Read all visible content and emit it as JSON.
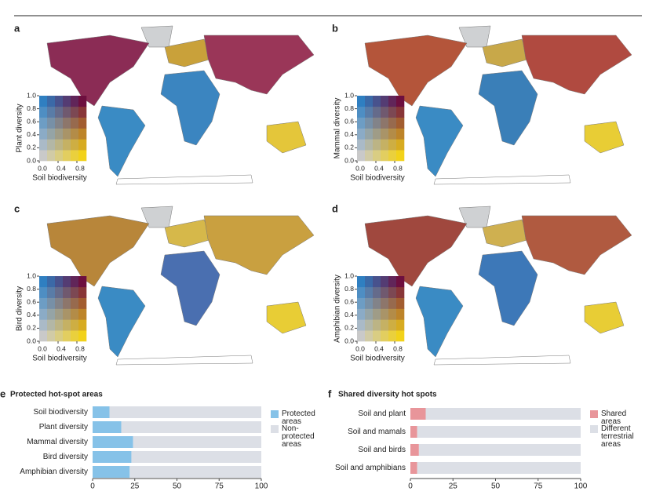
{
  "chart_data": [
    {
      "type": "bivariate-map",
      "label": "a",
      "ylabel": "Plant diversity",
      "xlabel": "Soil biodiversity",
      "xlim": [
        0,
        1
      ],
      "ylim": [
        0,
        1
      ],
      "xticks": [
        {
          "value": 0,
          "label": "0.0"
        },
        0.4,
        0.8
      ],
      "yticks": [
        {
          "value": 0,
          "label": "0.0"
        },
        0.2,
        0.4,
        0.6,
        0.8,
        {
          "value": 1,
          "label": "1.0"
        }
      ]
    },
    {
      "type": "bivariate-map",
      "label": "b",
      "ylabel": "Mammal diversity",
      "xlabel": "Soil biodiversity",
      "xlim": [
        0,
        1
      ],
      "ylim": [
        0,
        1
      ],
      "xticks": [
        {
          "value": 0,
          "label": "0.0"
        },
        0.4,
        0.8
      ],
      "yticks": [
        {
          "value": 0,
          "label": "0.0"
        },
        0.2,
        0.4,
        0.6,
        0.8,
        {
          "value": 1,
          "label": "1.0"
        }
      ]
    },
    {
      "type": "bivariate-map",
      "label": "c",
      "ylabel": "Bird diversity",
      "xlabel": "Soil biodiversity",
      "xlim": [
        0,
        1
      ],
      "ylim": [
        0,
        1
      ],
      "xticks": [
        {
          "value": 0,
          "label": "0.0"
        },
        0.4,
        0.8
      ],
      "yticks": [
        {
          "value": 0,
          "label": "0.0"
        },
        0.2,
        0.4,
        0.6,
        0.8,
        {
          "value": 1,
          "label": "1.0"
        }
      ]
    },
    {
      "type": "bivariate-map",
      "label": "d",
      "ylabel": "Amphibian diversity",
      "xlabel": "Soil biodiversity",
      "xlim": [
        0,
        1
      ],
      "ylim": [
        0,
        1
      ],
      "xticks": [
        {
          "value": 0,
          "label": "0.0"
        },
        0.4,
        0.8
      ],
      "yticks": [
        {
          "value": 0,
          "label": "0.0"
        },
        0.2,
        0.4,
        0.6,
        0.8,
        {
          "value": 1,
          "label": "1.0"
        }
      ]
    },
    {
      "type": "bar",
      "label": "e",
      "title": "Protected hot-spot areas",
      "stacked": true,
      "categories": [
        "Soil biodiversity",
        "Plant diversity",
        "Mammal diversity",
        "Bird diversity",
        "Amphibian diversity"
      ],
      "series": [
        {
          "name": "Protected areas",
          "color": "#86c2e8",
          "values": [
            10,
            17,
            24,
            23,
            22
          ]
        },
        {
          "name": "Non-protected areas",
          "color": "#dcdfe6",
          "values": [
            90,
            83,
            76,
            77,
            78
          ]
        }
      ],
      "xlim": [
        0,
        100
      ],
      "xticks": [
        0,
        25,
        50,
        75,
        100
      ]
    },
    {
      "type": "bar",
      "label": "f",
      "title": "Shared diversity hot spots",
      "stacked": true,
      "categories": [
        "Soil and plant",
        "Soil and mamals",
        "Soil and birds",
        "Soil and amphibians"
      ],
      "series": [
        {
          "name": "Shared areas",
          "color": "#e8959a",
          "values": [
            9,
            4,
            5,
            4
          ]
        },
        {
          "name": "Different terrestrial areas",
          "color": "#dcdfe6",
          "values": [
            91,
            96,
            95,
            96
          ]
        }
      ],
      "xlim": [
        0,
        100
      ],
      "xticks": [
        0,
        25,
        50,
        75,
        100
      ]
    }
  ]
}
